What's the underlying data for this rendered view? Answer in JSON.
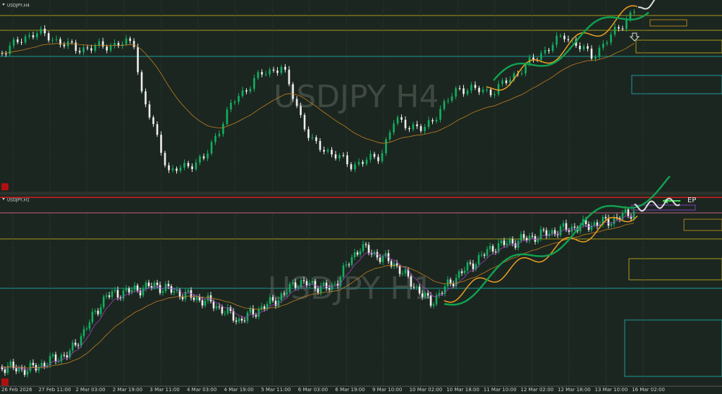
{
  "top_pane": {
    "symbol_label": "USDJPY,H4",
    "watermark": "USDJPY H4"
  },
  "bottom_pane": {
    "symbol_label": "USDJPY,H1",
    "watermark": "USDJPY H1",
    "annotation": "EP"
  },
  "time_axis": {
    "labels": [
      "26 Feb 2026",
      "27 Feb 11:00",
      "2 Mar 03:00",
      "2 Mar 19:00",
      "3 Mar 11:00",
      "4 Mar 03:00",
      "4 Mar 19:00",
      "5 Mar 11:00",
      "6 Mar 03:00",
      "6 Mar 19:00",
      "9 Mar 10:00",
      "10 Mar 02:00",
      "10 Mar 18:00",
      "11 Mar 10:00",
      "12 Mar 02:00",
      "12 Mar 18:00",
      "13 Mar 10:00",
      "16 Mar 02:00"
    ]
  }
}
